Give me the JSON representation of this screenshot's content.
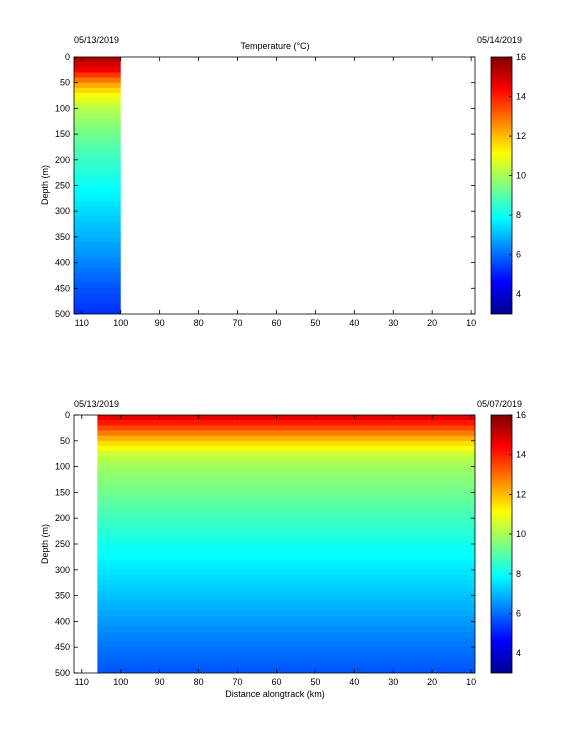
{
  "chart_data": [
    {
      "type": "heatmap",
      "title": "Temperature (°C)",
      "date_left": "05/13/2019",
      "date_right": "05/14/2019",
      "xlabel": "",
      "ylabel": "Depth (m)",
      "xlim": [
        112,
        9
      ],
      "ylim": [
        0,
        500
      ],
      "xticks": [
        110,
        100,
        90,
        80,
        70,
        60,
        50,
        40,
        30,
        20,
        10
      ],
      "yticks": [
        0,
        50,
        100,
        150,
        200,
        250,
        300,
        350,
        400,
        450,
        500
      ],
      "data_extent_x": [
        112,
        100
      ],
      "colorbar": {
        "min": 3,
        "max": 16,
        "ticks": [
          4,
          6,
          8,
          10,
          12,
          14,
          16
        ]
      },
      "profile": [
        {
          "depth": 0,
          "temp": 15.5
        },
        {
          "depth": 25,
          "temp": 14.5
        },
        {
          "depth": 50,
          "temp": 12.5
        },
        {
          "depth": 75,
          "temp": 11.0
        },
        {
          "depth": 100,
          "temp": 10.2
        },
        {
          "depth": 150,
          "temp": 9.3
        },
        {
          "depth": 200,
          "temp": 8.6
        },
        {
          "depth": 250,
          "temp": 8.0
        },
        {
          "depth": 300,
          "temp": 7.4
        },
        {
          "depth": 350,
          "temp": 6.9
        },
        {
          "depth": 400,
          "temp": 6.3
        },
        {
          "depth": 450,
          "temp": 5.7
        },
        {
          "depth": 500,
          "temp": 5.2
        }
      ]
    },
    {
      "type": "heatmap",
      "title": "",
      "date_left": "05/13/2019",
      "date_right": "05/07/2019",
      "xlabel": "Distance alongtrack (km)",
      "ylabel": "Depth (m)",
      "xlim": [
        112,
        9
      ],
      "ylim": [
        0,
        500
      ],
      "xticks": [
        110,
        100,
        90,
        80,
        70,
        60,
        50,
        40,
        30,
        20,
        10
      ],
      "yticks": [
        0,
        50,
        100,
        150,
        200,
        250,
        300,
        350,
        400,
        450,
        500
      ],
      "data_extent_x": [
        106,
        9
      ],
      "colorbar": {
        "min": 3,
        "max": 16,
        "ticks": [
          4,
          6,
          8,
          10,
          12,
          14,
          16
        ]
      },
      "profile": [
        {
          "depth": 0,
          "temp": 15.0
        },
        {
          "depth": 25,
          "temp": 13.5
        },
        {
          "depth": 50,
          "temp": 11.8
        },
        {
          "depth": 75,
          "temp": 10.5
        },
        {
          "depth": 100,
          "temp": 9.9
        },
        {
          "depth": 150,
          "temp": 9.3
        },
        {
          "depth": 200,
          "temp": 8.7
        },
        {
          "depth": 250,
          "temp": 8.1
        },
        {
          "depth": 300,
          "temp": 7.6
        },
        {
          "depth": 350,
          "temp": 7.1
        },
        {
          "depth": 400,
          "temp": 6.6
        },
        {
          "depth": 450,
          "temp": 6.1
        },
        {
          "depth": 500,
          "temp": 5.7
        }
      ]
    }
  ]
}
